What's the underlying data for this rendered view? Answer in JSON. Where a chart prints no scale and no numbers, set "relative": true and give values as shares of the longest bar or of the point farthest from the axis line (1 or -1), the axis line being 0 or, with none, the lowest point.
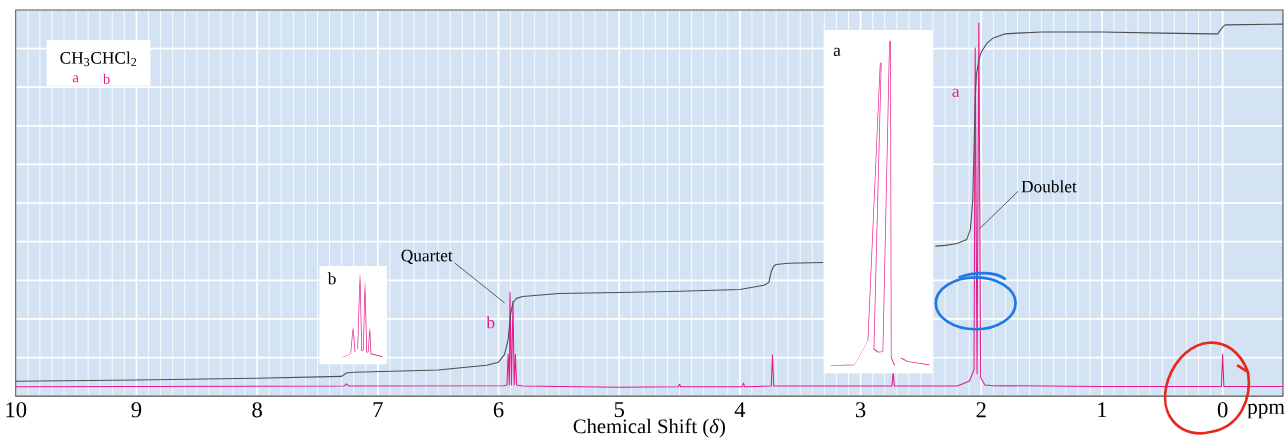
{
  "chart_data": {
    "type": "line",
    "xlabel": "Chemical Shift (*δ*)",
    "relative": true,
    "xlim": [
      10,
      -0.5
    ],
    "xticks": [
      10,
      9,
      8,
      7,
      6,
      5,
      4,
      3,
      2,
      1,
      0
    ],
    "grid": true,
    "series": [
      {
        "color": "#e8198b",
        "x": [
          10,
          7.28,
          7.26,
          7.24,
          5.96,
          5.93,
          5.92,
          5.91,
          5.905,
          5.893,
          5.88,
          5.87,
          5.86,
          5.85,
          5.8,
          5.0,
          4.51,
          4.5,
          4.49,
          3.98,
          3.97,
          3.96,
          3.74,
          3.73,
          3.72,
          2.74,
          2.73,
          2.72,
          2.2,
          2.1,
          2.06,
          2.05,
          2.035,
          2.02,
          2.005,
          1.97,
          1.9,
          1.0,
          0.01,
          0,
          -0.01,
          -0.5
        ],
        "values": [
          0.025,
          0.027,
          0.033,
          0.027,
          0.028,
          0.03,
          0.112,
          0.03,
          0.278,
          0.03,
          0.254,
          0.03,
          0.112,
          0.03,
          0.027,
          0.024,
          0.025,
          0.032,
          0.025,
          0.025,
          0.035,
          0.025,
          0.027,
          0.11,
          0.027,
          0.027,
          0.064,
          0.027,
          0.027,
          0.04,
          0.07,
          0.933,
          0.06,
          1.0,
          0.05,
          0.03,
          0.028,
          0.026,
          0.026,
          0.112,
          0.026,
          0.026
        ]
      },
      {
        "color": "#4d4d4d",
        "x": [
          10,
          9,
          8,
          7.3,
          7.26,
          7.2,
          6.5,
          6.1,
          6.0,
          5.95,
          5.92,
          5.9,
          5.88,
          5.85,
          5.8,
          5.5,
          5,
          4.5,
          4,
          3.8,
          3.76,
          3.74,
          3.72,
          3.7,
          3.6,
          3.31,
          3.3,
          2.45,
          2.38,
          2.3,
          2.2,
          2.12,
          2.09,
          2.07,
          2.06,
          2.05,
          2.04,
          2.02,
          2.0,
          1.95,
          1.9,
          1.8,
          1.7,
          1.5,
          1,
          0.5,
          0.1,
          0.04,
          0.02,
          0,
          -0.02,
          -0.5
        ],
        "values": [
          0.04,
          0.043,
          0.048,
          0.053,
          0.062,
          0.064,
          0.07,
          0.083,
          0.091,
          0.112,
          0.152,
          0.219,
          0.251,
          0.262,
          0.267,
          0.275,
          0.278,
          0.281,
          0.286,
          0.297,
          0.305,
          0.334,
          0.348,
          0.353,
          0.356,
          0.358,
          null,
          null,
          0.402,
          0.404,
          0.409,
          0.42,
          0.447,
          0.527,
          0.66,
          0.794,
          0.861,
          0.901,
          0.922,
          0.947,
          0.96,
          0.971,
          0.973,
          0.976,
          0.976,
          0.973,
          0.971,
          0.971,
          0.981,
          0.989,
          0.995,
          0.997
        ]
      }
    ],
    "annotations": [
      "CH$_{3}$CHCl$_{2}$",
      "a",
      "b",
      "b",
      "a",
      "ppm",
      {
        "text": "Quartet",
        "x": 5.95,
        "y": 0.25
      },
      {
        "text": "Doublet",
        "x": 2.01,
        "y": 0.45
      },
      "a",
      "b"
    ]
  }
}
